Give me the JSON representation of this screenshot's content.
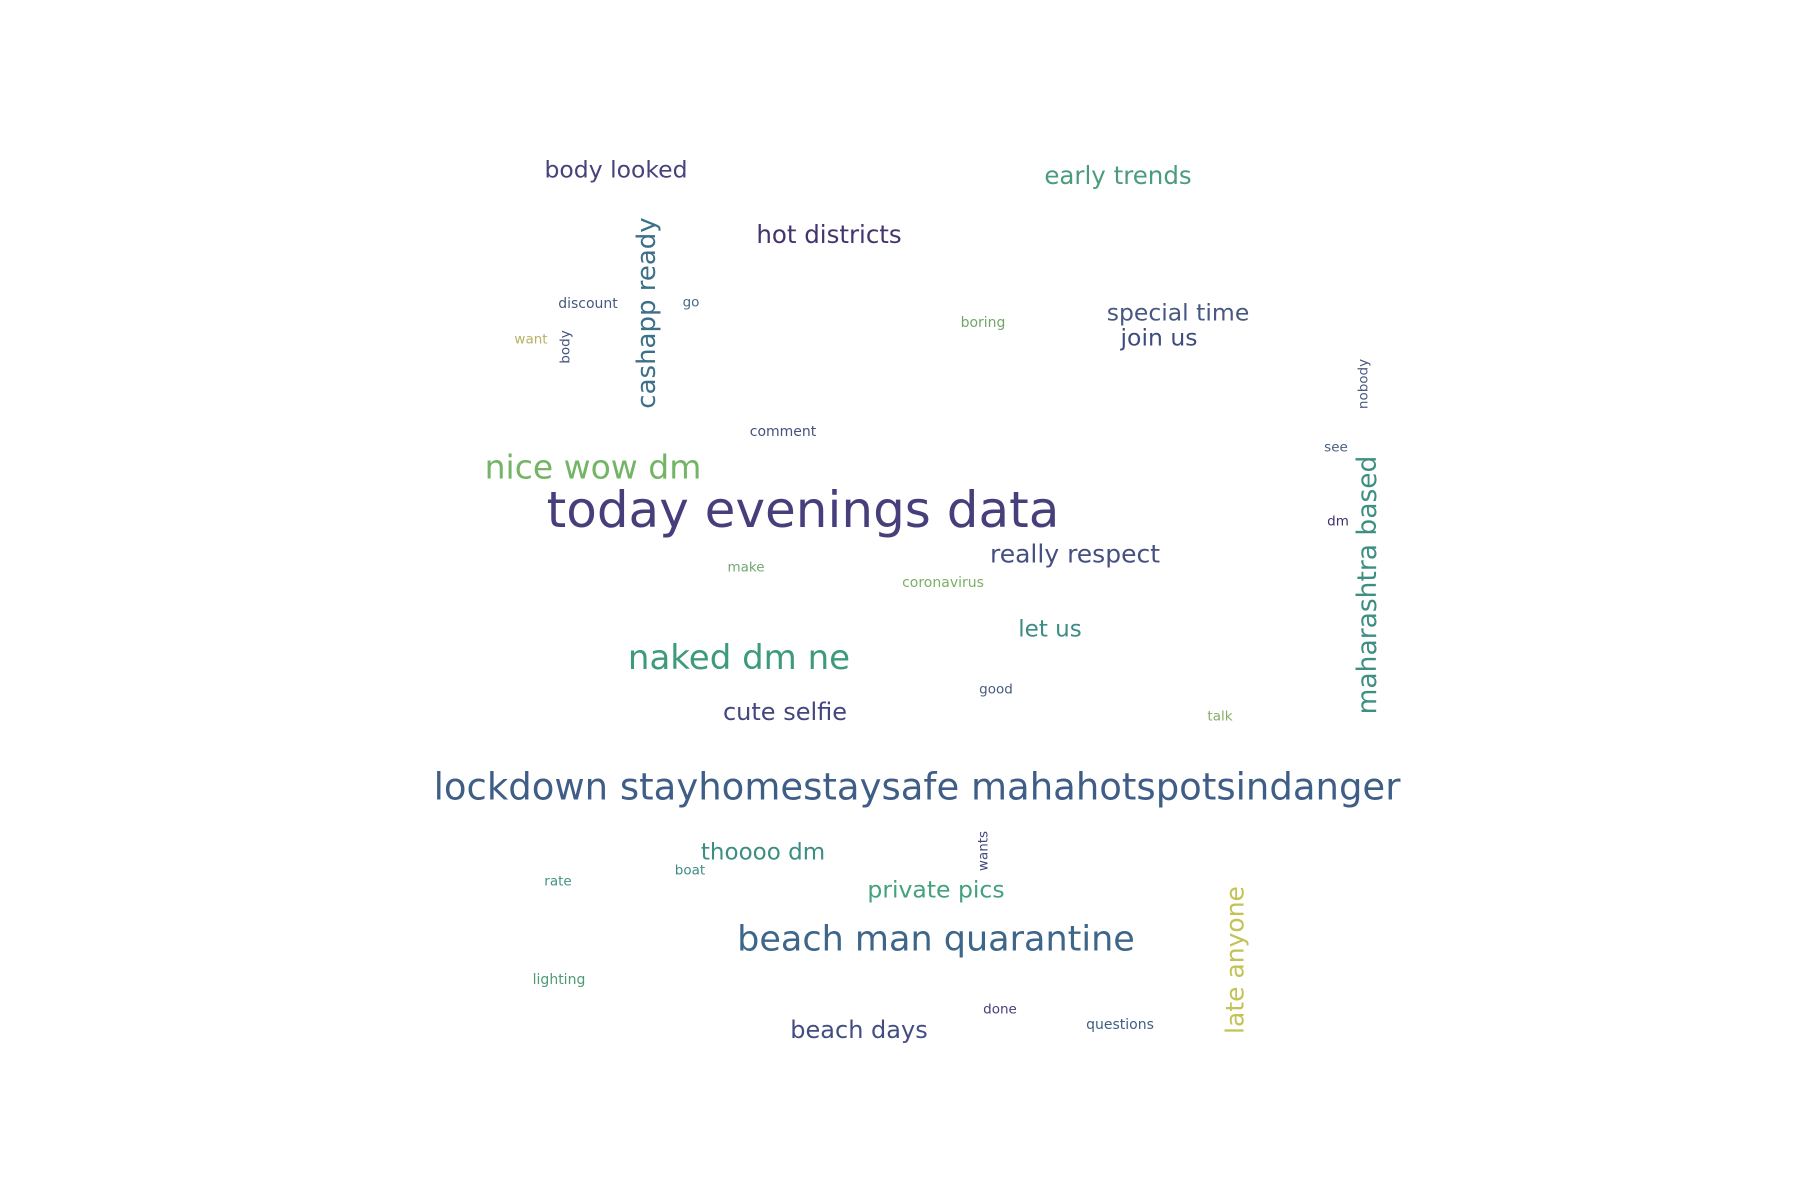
{
  "chart_data": {
    "type": "wordcloud",
    "words": [
      {
        "text": "today evenings data",
        "weight": 1.0,
        "color": "#463f7b",
        "vertical": false
      },
      {
        "text": "lockdown stayhomestaysafe mahahotspotsindanger",
        "weight": 0.74,
        "color": "#3f5e87",
        "vertical": false
      },
      {
        "text": "beach man quarantine",
        "weight": 0.7,
        "color": "#3e6689",
        "vertical": false
      },
      {
        "text": "naked dm ne",
        "weight": 0.68,
        "color": "#3d9a7c",
        "vertical": false
      },
      {
        "text": "nice wow dm",
        "weight": 0.66,
        "color": "#74b565",
        "vertical": false
      },
      {
        "text": "maharashtra based",
        "weight": 0.53,
        "color": "#3d8f82",
        "vertical": true
      },
      {
        "text": "cashapp ready",
        "weight": 0.52,
        "color": "#3c6f88",
        "vertical": true
      },
      {
        "text": "late anyone",
        "weight": 0.5,
        "color": "#c2c255",
        "vertical": true
      },
      {
        "text": "really respect",
        "weight": 0.5,
        "color": "#46507f",
        "vertical": false
      },
      {
        "text": "hot districts",
        "weight": 0.49,
        "color": "#45336d",
        "vertical": false
      },
      {
        "text": "early trends",
        "weight": 0.49,
        "color": "#4a9c7d",
        "vertical": false
      },
      {
        "text": "cute selfie",
        "weight": 0.48,
        "color": "#44467d",
        "vertical": false
      },
      {
        "text": "beach days",
        "weight": 0.48,
        "color": "#434d82",
        "vertical": false
      },
      {
        "text": "special time",
        "weight": 0.47,
        "color": "#475882",
        "vertical": false
      },
      {
        "text": "join us",
        "weight": 0.47,
        "color": "#3e4a80",
        "vertical": false
      },
      {
        "text": "body looked",
        "weight": 0.47,
        "color": "#47437a",
        "vertical": false
      },
      {
        "text": "private pics",
        "weight": 0.47,
        "color": "#44a17d",
        "vertical": false
      },
      {
        "text": "let us",
        "weight": 0.46,
        "color": "#3c8c84",
        "vertical": false
      },
      {
        "text": "thoooo dm",
        "weight": 0.46,
        "color": "#3c8d83",
        "vertical": false
      },
      {
        "text": "coronavirus",
        "weight": 0.28,
        "color": "#7bb066",
        "vertical": false
      },
      {
        "text": "questions",
        "weight": 0.28,
        "color": "#3f5e86",
        "vertical": false
      },
      {
        "text": "lighting",
        "weight": 0.28,
        "color": "#4e9a76",
        "vertical": false
      },
      {
        "text": "comment",
        "weight": 0.28,
        "color": "#46507f",
        "vertical": false
      },
      {
        "text": "discount",
        "weight": 0.28,
        "color": "#475880",
        "vertical": false
      },
      {
        "text": "boring",
        "weight": 0.28,
        "color": "#73a56a",
        "vertical": false
      },
      {
        "text": "make",
        "weight": 0.27,
        "color": "#6fa96d",
        "vertical": false
      },
      {
        "text": "want",
        "weight": 0.27,
        "color": "#b8b160",
        "vertical": false
      },
      {
        "text": "good",
        "weight": 0.27,
        "color": "#4a5a80",
        "vertical": false
      },
      {
        "text": "talk",
        "weight": 0.27,
        "color": "#86ad69",
        "vertical": false
      },
      {
        "text": "rate",
        "weight": 0.27,
        "color": "#3f9382",
        "vertical": false
      },
      {
        "text": "boat",
        "weight": 0.27,
        "color": "#3f8a87",
        "vertical": false
      },
      {
        "text": "done",
        "weight": 0.27,
        "color": "#44407a",
        "vertical": false
      },
      {
        "text": "dm",
        "weight": 0.27,
        "color": "#413068",
        "vertical": false
      },
      {
        "text": "see",
        "weight": 0.27,
        "color": "#47607f",
        "vertical": false
      },
      {
        "text": "go",
        "weight": 0.27,
        "color": "#486b86",
        "vertical": false
      },
      {
        "text": "body",
        "weight": 0.27,
        "color": "#45537f",
        "vertical": true
      },
      {
        "text": "nobody",
        "weight": 0.27,
        "color": "#4a5b80",
        "vertical": true
      },
      {
        "text": "wants",
        "weight": 0.27,
        "color": "#45477c",
        "vertical": true
      }
    ]
  }
}
